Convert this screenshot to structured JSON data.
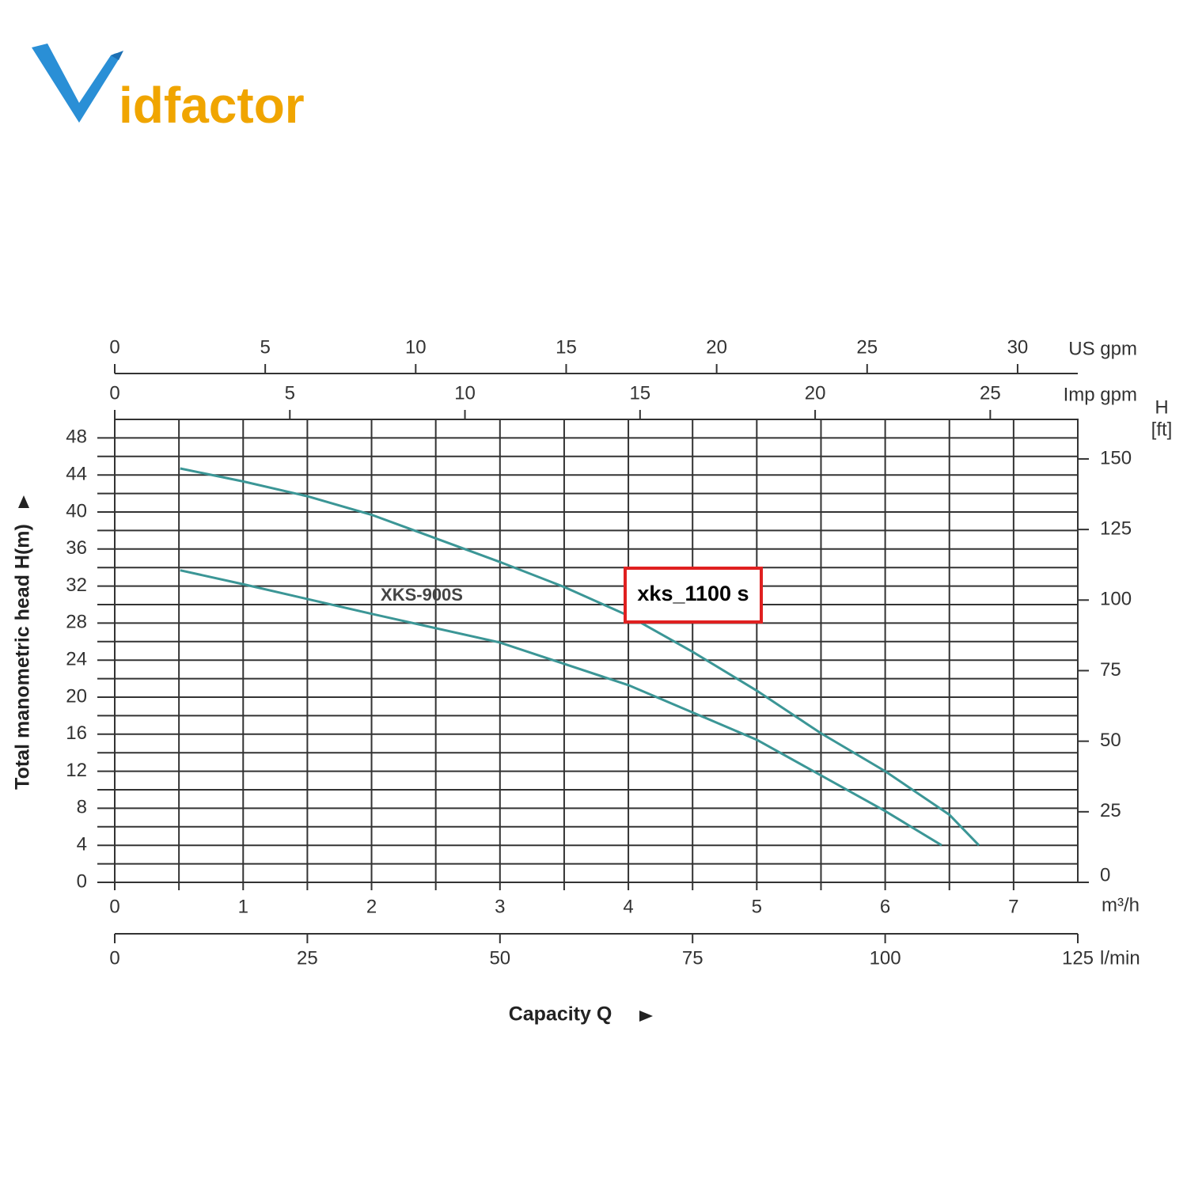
{
  "logo": {
    "text": "idfactor"
  },
  "chart_data": {
    "type": "line",
    "y_label": "Total manometric head H(m)",
    "x_label": "Capacity Q",
    "x_unit": "m³/h",
    "xlim": [
      0,
      7.5
    ],
    "xticks": [
      0,
      1,
      2,
      3,
      4,
      5,
      6,
      7
    ],
    "ylim": [
      0,
      50
    ],
    "yticks": [
      0,
      4,
      8,
      12,
      16,
      20,
      24,
      28,
      32,
      36,
      40,
      44,
      48
    ],
    "y2_unit": [
      "H",
      "[ft]"
    ],
    "y2lim": [
      0,
      164
    ],
    "y2ticks": [
      0,
      25,
      50,
      75,
      100,
      125,
      150
    ],
    "extra_x_axes": [
      {
        "unit": "US gpm",
        "position": "top",
        "lim": [
          0,
          32
        ],
        "ticks": [
          0,
          5,
          10,
          15,
          20,
          25,
          30
        ]
      },
      {
        "unit": "Imp gpm",
        "position": "top",
        "lim": [
          0,
          27.5
        ],
        "ticks": [
          0,
          5,
          10,
          15,
          20,
          25
        ]
      },
      {
        "unit": "l/min",
        "position": "bottom",
        "lim": [
          0,
          125
        ],
        "ticks": [
          0,
          25,
          50,
          75,
          100,
          125
        ]
      }
    ],
    "grid": true,
    "series": [
      {
        "name": "xks_1100 s",
        "color": "#3b9696",
        "x": [
          0.51,
          1,
          1.5,
          2,
          3,
          3.5,
          4,
          4.5,
          5,
          5.5,
          6,
          6.5,
          6.73
        ],
        "values": [
          44.7,
          43.3,
          41.7,
          39.7,
          34.6,
          31.9,
          28.8,
          24.9,
          20.7,
          16.1,
          12,
          7.3,
          4
        ]
      },
      {
        "name": "XKS-900S",
        "color": "#3b9696",
        "x": [
          0.51,
          1,
          2,
          3,
          4,
          5,
          6,
          6.44
        ],
        "values": [
          33.7,
          32.2,
          29,
          25.9,
          21.3,
          15.4,
          7.7,
          4
        ]
      }
    ]
  }
}
